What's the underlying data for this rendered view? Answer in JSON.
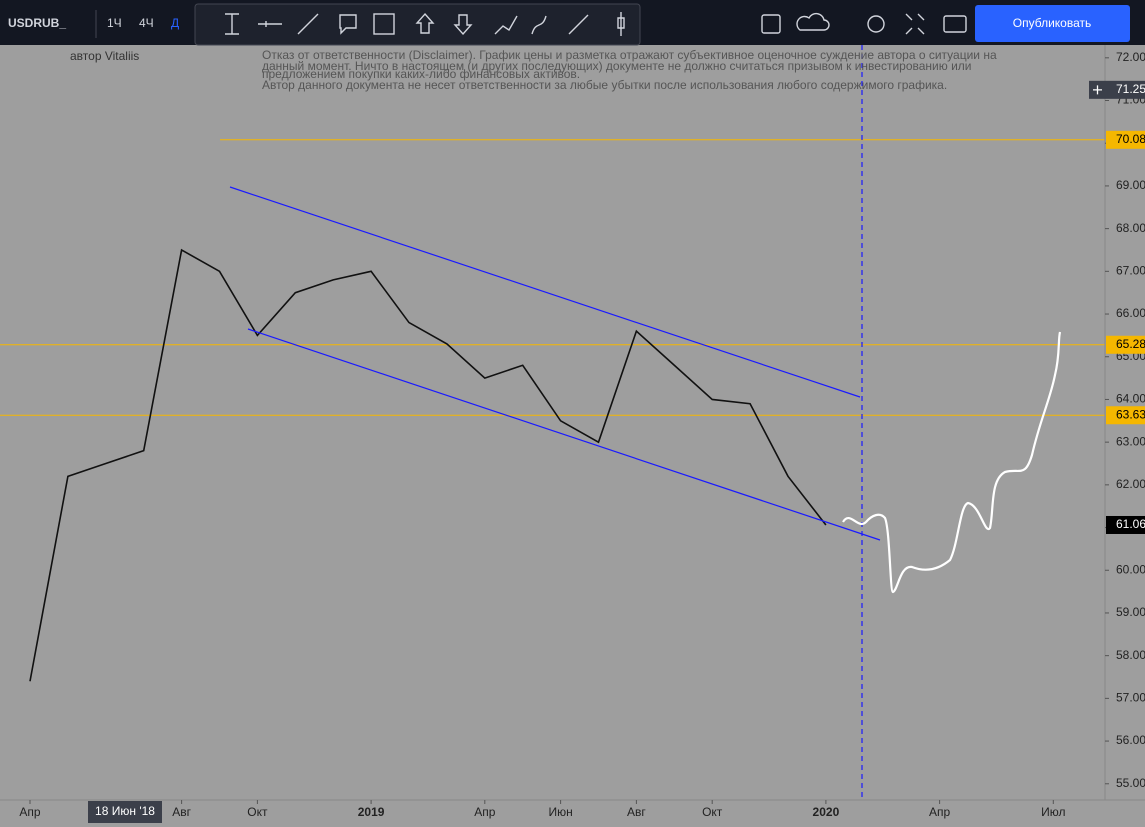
{
  "toolbar": {
    "symbol": "USDRUB_",
    "intervals": [
      "1Ч",
      "4Ч",
      "Д"
    ],
    "publish": "Опубликовать"
  },
  "author": "автор Vitaliis",
  "disclaimer": [
    "Отказ от ответственности (Disclaimer). График цены и разметка отражают субъективное оценочное суждение автора о ситуации на",
    "данный момент. Ничто в настоящем (и других последующих) документе не должно считаться призывом к инвестированию или",
    "предложением покупки каких-либо финансовых активов.",
    "Автор данного документа не несет ответственности за любые убытки после использования любого содержимого графика."
  ],
  "crosshair_date": "18 Июн '18",
  "chart_data": {
    "type": "line",
    "color": "#111111",
    "x": [
      "2018-04",
      "2018-05",
      "2018-06",
      "2018-07",
      "2018-08",
      "2018-09",
      "2018-10",
      "2018-11",
      "2018-12",
      "2019-01",
      "2019-02",
      "2019-03",
      "2019-04",
      "2019-05",
      "2019-06",
      "2019-07",
      "2019-08",
      "2019-09",
      "2019-10",
      "2019-11",
      "2019-12",
      "2020-01"
    ],
    "values": [
      57.4,
      62.2,
      62.5,
      62.8,
      67.5,
      67.0,
      65.5,
      66.5,
      66.8,
      67.0,
      65.8,
      65.3,
      64.5,
      64.8,
      63.5,
      63.0,
      65.6,
      64.8,
      64.0,
      63.9,
      62.2,
      61.06
    ],
    "ylim": [
      54.62,
      72.3
    ],
    "yticks": [
      {
        "value": 55,
        "label": "55.00"
      },
      {
        "value": 56,
        "label": "56.00"
      },
      {
        "value": 57,
        "label": "57.00"
      },
      {
        "value": 58,
        "label": "58.00"
      },
      {
        "value": 59,
        "label": "59.00"
      },
      {
        "value": 60,
        "label": "60.00"
      },
      {
        "value": 61,
        "label": "61.00"
      },
      {
        "value": 62,
        "label": "62.00"
      },
      {
        "value": 63,
        "label": "63.00"
      },
      {
        "value": 64,
        "label": "64.00"
      },
      {
        "value": 65,
        "label": "65.00"
      },
      {
        "value": 66,
        "label": "66.00"
      },
      {
        "value": 67,
        "label": "67.00"
      },
      {
        "value": 68,
        "label": "68.00"
      },
      {
        "value": 69,
        "label": "69.00"
      },
      {
        "value": 70,
        "label": "70.00"
      },
      {
        "value": 71,
        "label": "71.00"
      },
      {
        "value": 72,
        "label": "72.00"
      }
    ],
    "xticks": [
      {
        "value": "2018-04",
        "label": "Апр"
      },
      {
        "value": "2018-08",
        "label": "Авг"
      },
      {
        "value": "2018-10",
        "label": "Окт"
      },
      {
        "value": "2019-01",
        "label": "2019"
      },
      {
        "value": "2019-04",
        "label": "Апр"
      },
      {
        "value": "2019-06",
        "label": "Июн"
      },
      {
        "value": "2019-08",
        "label": "Авг"
      },
      {
        "value": "2019-10",
        "label": "Окт"
      },
      {
        "value": "2020-01",
        "label": "2020"
      },
      {
        "value": "2020-04",
        "label": "Апр"
      },
      {
        "value": "2020-07",
        "label": "Июл"
      }
    ],
    "levels": [
      70.08,
      65.28,
      63.63
    ],
    "level_color": "#f5b700",
    "last_price": 61.06,
    "crosshair_price": 71.25
  }
}
